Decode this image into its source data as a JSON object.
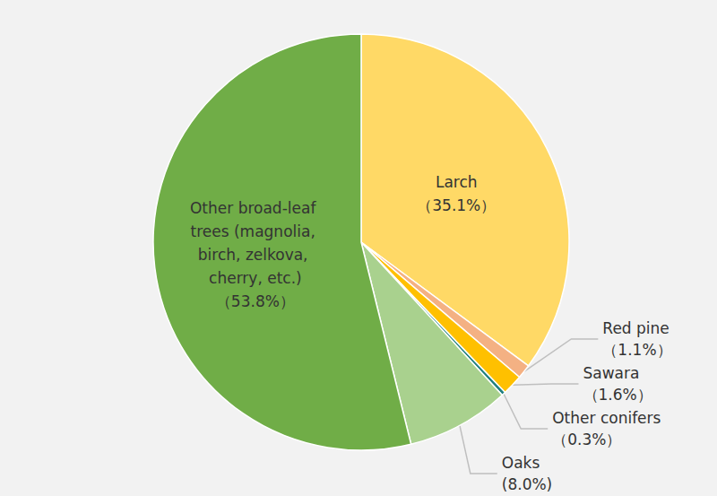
{
  "chart_data": {
    "type": "pie",
    "categories": [
      "Larch",
      "Red pine",
      "Sawara",
      "Other conifers",
      "Oaks",
      "Other broad-leaf trees (magnolia, birch, zelkova, cherry, etc.)"
    ],
    "values": [
      35.1,
      1.1,
      1.6,
      0.3,
      8.0,
      53.8
    ],
    "value_labels": [
      "（35.1%）",
      "（1.1%）",
      "（1.6%）",
      "（0.3%）",
      "(8.0%)",
      "（53.8%）"
    ],
    "colors": [
      "#ffd966",
      "#f4b183",
      "#ffc000",
      "#1f7f7f",
      "#a9d18e",
      "#70ad47"
    ],
    "data_labels": true
  }
}
